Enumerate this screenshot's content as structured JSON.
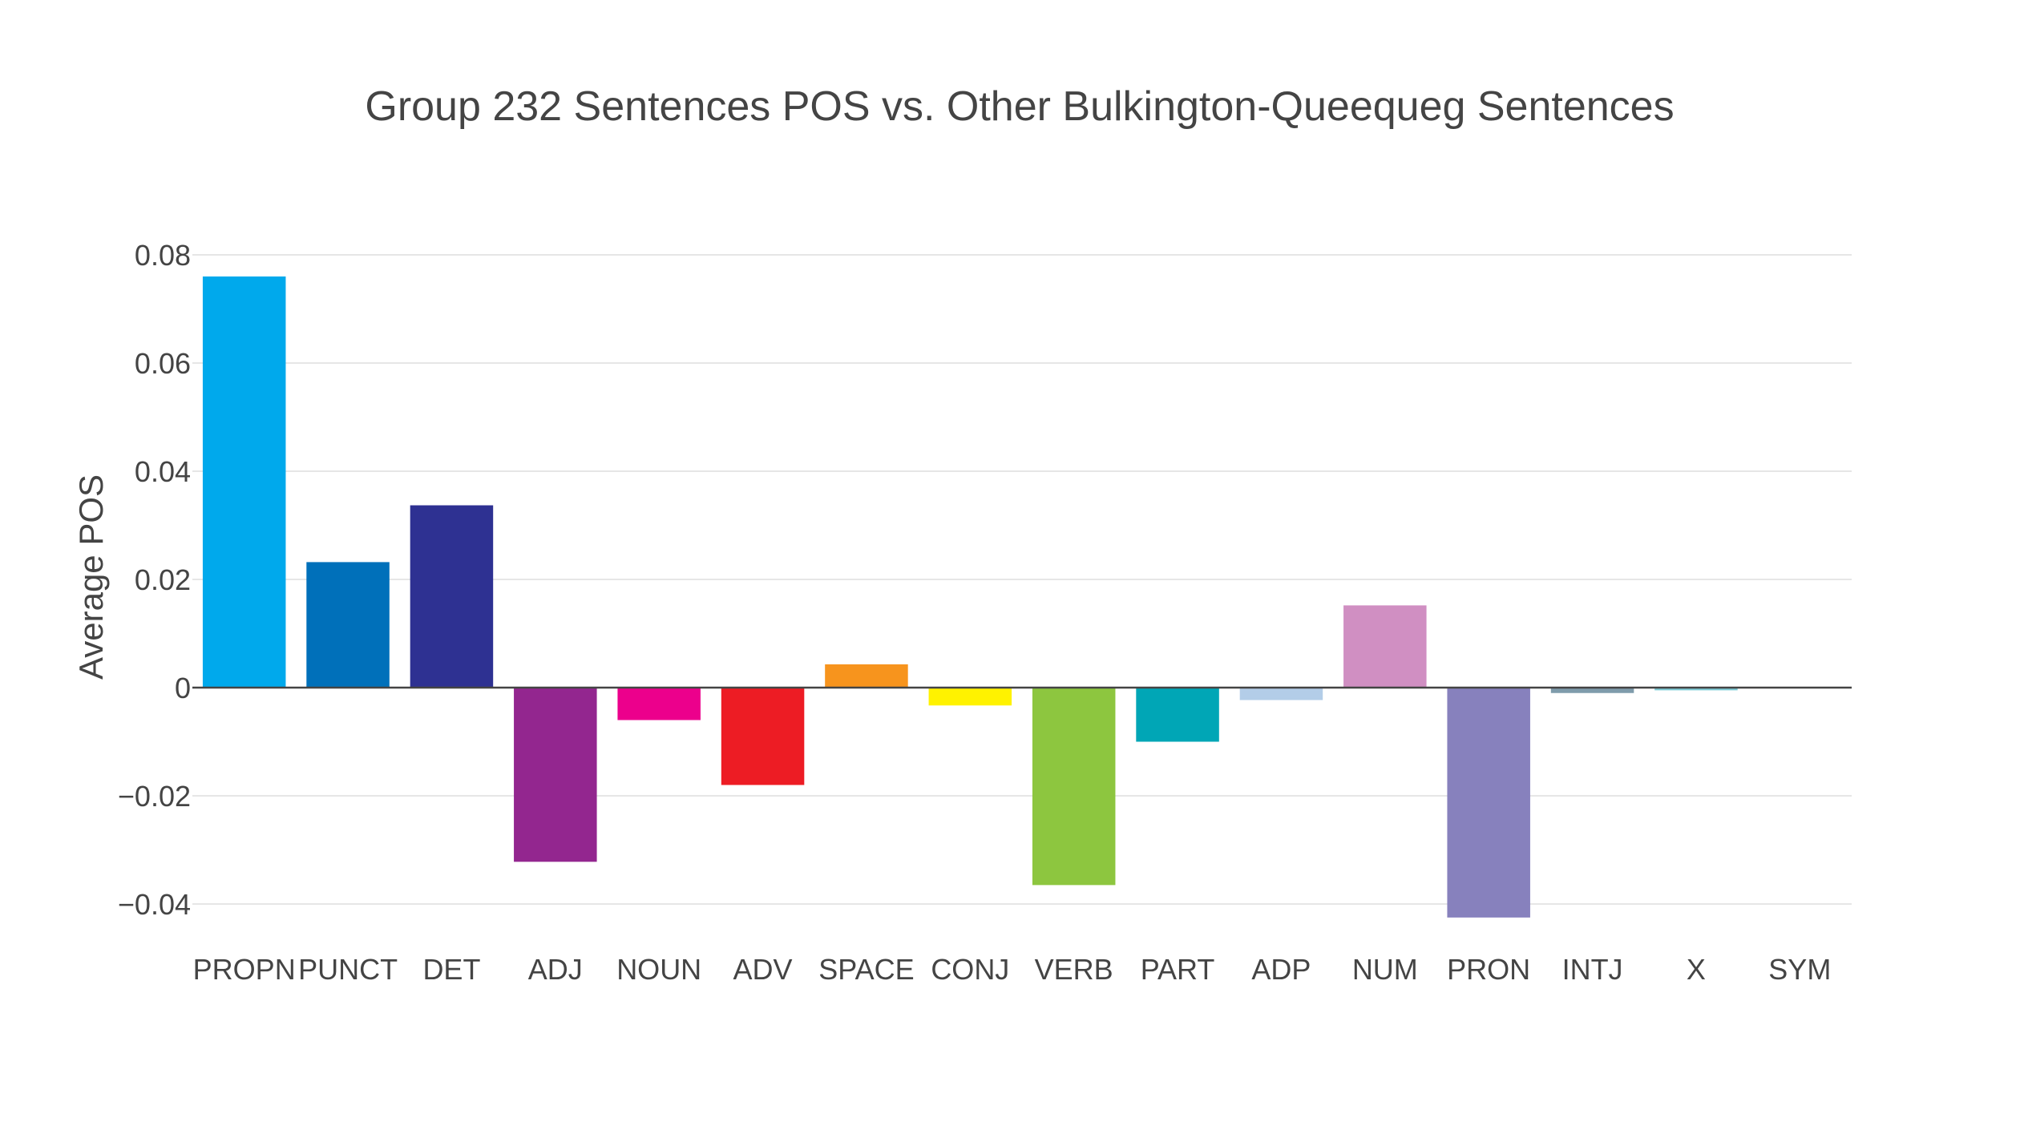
{
  "chart_data": {
    "type": "bar",
    "title": "Group 232 Sentences POS vs. Other Bulkington-Queequeg Sentences",
    "xlabel": "",
    "ylabel": "Average POS",
    "categories": [
      "PROPN",
      "PUNCT",
      "DET",
      "ADJ",
      "NOUN",
      "ADV",
      "SPACE",
      "CONJ",
      "VERB",
      "PART",
      "ADP",
      "NUM",
      "PRON",
      "INTJ",
      "X",
      "SYM"
    ],
    "values": [
      0.076,
      0.0232,
      0.0337,
      -0.0322,
      -0.006,
      -0.018,
      0.0043,
      -0.0033,
      -0.0365,
      -0.01,
      -0.0023,
      0.0152,
      -0.0425,
      -0.001,
      -0.0005,
      0.0
    ],
    "colors": [
      "#00a9ec",
      "#0070ba",
      "#2e3192",
      "#93268f",
      "#ec008c",
      "#ed1c24",
      "#f7941d",
      "#fff200",
      "#8dc63f",
      "#00a6b6",
      "#b3cde8",
      "#d08fc2",
      "#8781bd",
      "#7f9bab",
      "#7fcbd6",
      "#ffffff"
    ],
    "yticks": [
      0.08,
      0.06,
      0.04,
      0.02,
      0,
      -0.02,
      -0.04
    ],
    "ytick_labels": [
      "0.08",
      "0.06",
      "0.04",
      "0.02",
      "0",
      "−0.02",
      "−0.04"
    ],
    "ylim": [
      -0.0495,
      0.0825
    ],
    "grid": true,
    "legend": "none"
  }
}
